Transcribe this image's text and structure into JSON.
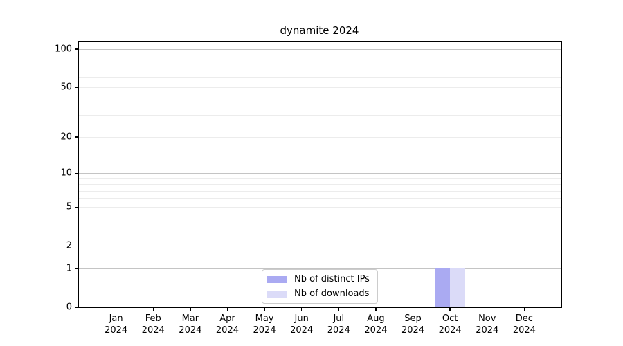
{
  "chart_data": {
    "type": "bar",
    "title": "dynamite 2024",
    "categories": [
      "Jan",
      "Feb",
      "Mar",
      "Apr",
      "May",
      "Jun",
      "Jul",
      "Aug",
      "Sep",
      "Oct",
      "Nov",
      "Dec"
    ],
    "category_year": "2024",
    "series": [
      {
        "name": "Nb of distinct IPs",
        "color": "#aaaaf2",
        "values": [
          0,
          0,
          0,
          0,
          0,
          0,
          0,
          0,
          0,
          1,
          0,
          0
        ]
      },
      {
        "name": "Nb of downloads",
        "color": "#dbdbf8",
        "values": [
          0,
          0,
          0,
          0,
          0,
          0,
          0,
          0,
          0,
          1,
          0,
          0
        ]
      }
    ],
    "xlabel": "",
    "ylabel": "",
    "yscale": "log1p",
    "ylim": [
      0,
      115
    ],
    "yticks": [
      0,
      1,
      2,
      5,
      10,
      20,
      50,
      100
    ],
    "major_gridlines": [
      1,
      10,
      100
    ],
    "minor_gridlines": [
      2,
      3,
      4,
      5,
      6,
      7,
      8,
      9,
      20,
      30,
      40,
      50,
      60,
      70,
      80,
      90,
      110
    ],
    "grid": "horizontal",
    "legend_position": "lower center",
    "colors": {
      "major_grid": "#c4c4c4",
      "minor_grid": "#ececec",
      "spine": "#000000",
      "background": "#ffffff"
    }
  }
}
